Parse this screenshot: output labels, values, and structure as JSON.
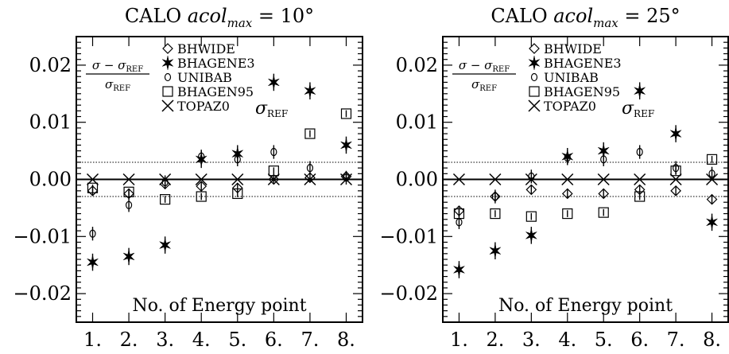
{
  "chart_data": [
    {
      "type": "scatter",
      "title_prefix": "CALO ",
      "title_var": "acol",
      "title_sub": "max",
      "title_suffix": " = 10°",
      "xlabel": "No. of Energy point",
      "ylabel_num": "σ − σ",
      "ylabel_num_sub": "REF",
      "ylabel_den": "σ",
      "ylabel_den_sub": "REF",
      "ref_label": "σ",
      "ref_label_sub": "REF",
      "xlim": [
        0.55,
        8.45
      ],
      "ylim": [
        -0.025,
        0.025
      ],
      "x_tick_values": [
        1,
        2,
        3,
        4,
        5,
        6,
        7,
        8
      ],
      "x_ticks": [
        "1.",
        "2.",
        "3.",
        "4.",
        "5.",
        "6.",
        "7.",
        "8."
      ],
      "y_tick_values": [
        0.02,
        0.01,
        0.0,
        -0.01,
        -0.02
      ],
      "y_ticks": [
        "0.02",
        "0.01",
        "0.00",
        "−0.01",
        "−0.02"
      ],
      "band": [
        -0.003,
        0.003
      ],
      "series": [
        {
          "name": "BHWIDE",
          "marker": "diamond",
          "x": [
            1,
            2,
            3,
            4,
            5,
            6,
            7,
            8
          ],
          "y": [
            -0.002,
            -0.0025,
            -0.0008,
            -0.0012,
            -0.0015,
            0.0,
            0.0003,
            0.0005
          ],
          "err": [
            0.0008,
            0.0008,
            0.0008,
            0.0008,
            0.0008,
            0.0008,
            0.0008,
            0.0008
          ]
        },
        {
          "name": "BHAGENE3",
          "marker": "star",
          "x": [
            1,
            2,
            3,
            4,
            5,
            6,
            7,
            8
          ],
          "y": [
            -0.0145,
            -0.0135,
            -0.0115,
            0.0035,
            0.0045,
            0.017,
            0.0155,
            0.006
          ],
          "err": [
            0.0015,
            0.0015,
            0.0015,
            0.0015,
            0.0015,
            0.0015,
            0.0015,
            0.0015
          ]
        },
        {
          "name": "UNIBAB",
          "marker": "circle",
          "x": [
            1,
            2,
            3,
            4,
            5,
            6,
            7,
            8
          ],
          "y": [
            -0.0095,
            -0.0045,
            -0.0005,
            0.004,
            0.0035,
            0.0048,
            0.002,
            0.0003
          ],
          "err": [
            0.0012,
            0.0012,
            0.0012,
            0.0012,
            0.0012,
            0.0012,
            0.0012,
            0.0012
          ]
        },
        {
          "name": "BHAGEN95",
          "marker": "square",
          "x": [
            1,
            2,
            3,
            4,
            5,
            6,
            7,
            8
          ],
          "y": [
            -0.0015,
            -0.0022,
            -0.0035,
            -0.003,
            -0.0025,
            0.0015,
            0.008,
            0.0115
          ],
          "err": [
            0.0006,
            0.0006,
            0.0006,
            0.0006,
            0.0006,
            0.0006,
            0.0006,
            0.0006
          ]
        },
        {
          "name": "TOPAZ0",
          "marker": "x",
          "x": [
            1,
            2,
            3,
            4,
            5,
            6,
            7,
            8
          ],
          "y": [
            0,
            0,
            0,
            0,
            0,
            0,
            0,
            0
          ],
          "err": [
            0,
            0,
            0,
            0,
            0,
            0,
            0,
            0
          ]
        }
      ]
    },
    {
      "type": "scatter",
      "title_prefix": "CALO ",
      "title_var": "acol",
      "title_sub": "max",
      "title_suffix": " = 25°",
      "xlabel": "No. of Energy point",
      "ylabel_num": "σ − σ",
      "ylabel_num_sub": "REF",
      "ylabel_den": "σ",
      "ylabel_den_sub": "REF",
      "ref_label": "σ",
      "ref_label_sub": "REF",
      "xlim": [
        0.55,
        8.45
      ],
      "ylim": [
        -0.025,
        0.025
      ],
      "x_tick_values": [
        1,
        2,
        3,
        4,
        5,
        6,
        7,
        8
      ],
      "x_ticks": [
        "1.",
        "2.",
        "3.",
        "4.",
        "5.",
        "6.",
        "7.",
        "8."
      ],
      "y_tick_values": [
        0.02,
        0.01,
        0.0,
        -0.01,
        -0.02
      ],
      "y_ticks": [
        "0.02",
        "0.01",
        "0.00",
        "−0.01",
        "−0.02"
      ],
      "band": [
        -0.003,
        0.003
      ],
      "series": [
        {
          "name": "BHWIDE",
          "marker": "diamond",
          "x": [
            1,
            2,
            3,
            4,
            5,
            6,
            7,
            8
          ],
          "y": [
            -0.0055,
            -0.003,
            -0.0018,
            -0.0025,
            -0.0025,
            -0.0018,
            -0.002,
            -0.0035
          ],
          "err": [
            0.0008,
            0.0008,
            0.0008,
            0.0008,
            0.0008,
            0.0008,
            0.0008,
            0.0008
          ]
        },
        {
          "name": "BHAGENE3",
          "marker": "star",
          "x": [
            1,
            2,
            3,
            4,
            5,
            6,
            7,
            8
          ],
          "y": [
            -0.0158,
            -0.0125,
            -0.0098,
            0.004,
            0.005,
            0.0155,
            0.008,
            -0.0075
          ],
          "err": [
            0.0015,
            0.0015,
            0.0015,
            0.0015,
            0.0015,
            0.0015,
            0.0015,
            0.0015
          ]
        },
        {
          "name": "UNIBAB",
          "marker": "circle",
          "x": [
            1,
            2,
            3,
            4,
            5,
            6,
            7,
            8
          ],
          "y": [
            -0.0075,
            -0.003,
            0.0005,
            0.0038,
            0.0035,
            0.0048,
            0.002,
            0.001
          ],
          "err": [
            0.0012,
            0.0012,
            0.0012,
            0.0012,
            0.0012,
            0.0012,
            0.0012,
            0.0012
          ]
        },
        {
          "name": "BHAGEN95",
          "marker": "square",
          "x": [
            1,
            2,
            3,
            4,
            5,
            6,
            7,
            8
          ],
          "y": [
            -0.006,
            -0.006,
            -0.0065,
            -0.006,
            -0.0058,
            -0.003,
            0.0015,
            0.0035
          ],
          "err": [
            0.0006,
            0.0006,
            0.0006,
            0.0006,
            0.0006,
            0.0006,
            0.0006,
            0.0006
          ]
        },
        {
          "name": "TOPAZ0",
          "marker": "x",
          "x": [
            1,
            2,
            3,
            4,
            5,
            6,
            7,
            8
          ],
          "y": [
            0,
            0,
            0,
            0,
            0,
            0,
            0,
            0
          ],
          "err": [
            0,
            0,
            0,
            0,
            0,
            0,
            0,
            0
          ]
        }
      ]
    }
  ]
}
